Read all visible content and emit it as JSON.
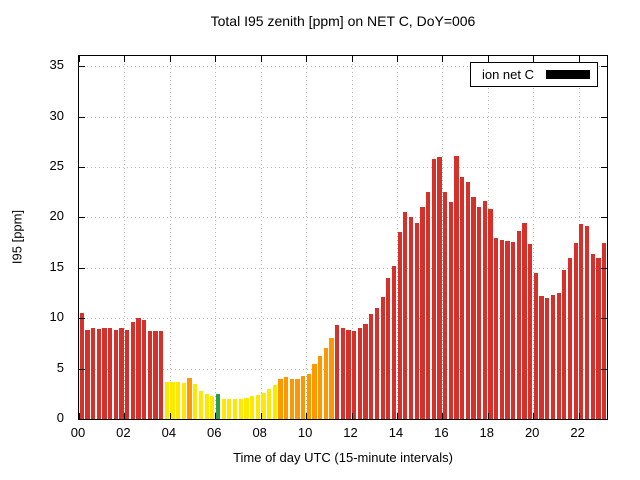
{
  "chart_data": {
    "type": "bar",
    "title": "Total I95 zenith [ppm] on NET C, DoY=006",
    "xlabel": "Time of day UTC (15-minute intervals)",
    "ylabel": "I95 [ppm]",
    "ylim": [
      0,
      36
    ],
    "xlim_hours": [
      0,
      23.25
    ],
    "yticks": [
      0,
      5,
      10,
      15,
      20,
      25,
      30,
      35
    ],
    "xticks": {
      "values": [
        0,
        2,
        4,
        6,
        8,
        10,
        12,
        14,
        16,
        18,
        20,
        22
      ],
      "labels": [
        "00",
        "02",
        "04",
        "06",
        "08",
        "10",
        "12",
        "14",
        "16",
        "18",
        "20",
        "22"
      ]
    },
    "grid": true,
    "legend": {
      "label": "ion net C",
      "swatch_color": "#000000",
      "position": "top-right"
    },
    "x_start_hour": 0,
    "x_step_hours": 0.25,
    "color_map": {
      "r": "#d6302b",
      "y": "#ffe800",
      "o": "#ff9800",
      "g": "#2e9e44"
    },
    "series": [
      {
        "name": "ion net C",
        "values": [
          10.5,
          8.8,
          9.0,
          8.9,
          9.0,
          9.0,
          8.8,
          9.0,
          8.8,
          9.6,
          10.0,
          9.8,
          8.7,
          8.7,
          8.7,
          3.7,
          3.7,
          3.7,
          3.6,
          4.1,
          3.5,
          2.8,
          2.5,
          2.3,
          2.5,
          2.0,
          2.0,
          2.0,
          2.0,
          2.1,
          2.3,
          2.4,
          2.6,
          3.0,
          3.4,
          4.0,
          4.2,
          4.0,
          4.0,
          4.3,
          4.5,
          5.5,
          6.2,
          7.0,
          8.0,
          9.3,
          9.0,
          8.8,
          8.7,
          9.0,
          9.4,
          10.4,
          11.0,
          12.1,
          14.0,
          15.2,
          18.5,
          20.5,
          20.0,
          19.4,
          21.0,
          22.5,
          25.8,
          26.0,
          22.5,
          21.5,
          26.1,
          24.0,
          23.5,
          22.0,
          21.0,
          21.6,
          20.8,
          18.0,
          17.8,
          17.7,
          17.6,
          18.6,
          19.4,
          17.4,
          14.5,
          12.2,
          12.0,
          12.3,
          12.5,
          14.8,
          16.0,
          17.5,
          19.3,
          19.1,
          16.4,
          16.0,
          17.5
        ],
        "bar_colors": [
          "r",
          "r",
          "r",
          "r",
          "r",
          "r",
          "r",
          "r",
          "r",
          "r",
          "r",
          "r",
          "r",
          "r",
          "r",
          "y",
          "y",
          "y",
          "y",
          "o",
          "y",
          "y",
          "y",
          "y",
          "g",
          "y",
          "y",
          "y",
          "y",
          "y",
          "y",
          "y",
          "y",
          "y",
          "y",
          "o",
          "o",
          "o",
          "o",
          "o",
          "o",
          "o",
          "o",
          "o",
          "o",
          "r",
          "r",
          "r",
          "r",
          "r",
          "r",
          "r",
          "r",
          "r",
          "r",
          "r",
          "r",
          "r",
          "r",
          "r",
          "r",
          "r",
          "r",
          "r",
          "r",
          "r",
          "r",
          "r",
          "r",
          "r",
          "r",
          "r",
          "r",
          "r",
          "r",
          "r",
          "r",
          "r",
          "r",
          "r",
          "r",
          "r",
          "r",
          "r",
          "r",
          "r",
          "r",
          "r",
          "r",
          "r",
          "r",
          "r",
          "r"
        ]
      }
    ]
  }
}
